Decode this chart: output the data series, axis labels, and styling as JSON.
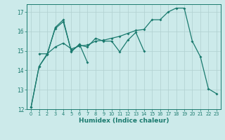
{
  "xlabel": "Humidex (Indice chaleur)",
  "background_color": "#cceaea",
  "line_color": "#1a7a6e",
  "grid_color": "#b0d0d0",
  "ylim": [
    12,
    17.4
  ],
  "xlim": [
    -0.5,
    23.5
  ],
  "yticks": [
    12,
    13,
    14,
    15,
    16,
    17
  ],
  "xticks": [
    0,
    1,
    2,
    3,
    4,
    5,
    6,
    7,
    8,
    9,
    10,
    11,
    12,
    13,
    14,
    15,
    16,
    17,
    18,
    19,
    20,
    21,
    22,
    23
  ],
  "series": [
    {
      "x": [
        0,
        1,
        2,
        3,
        4,
        5,
        6,
        7
      ],
      "y": [
        12.1,
        14.2,
        14.8,
        16.2,
        16.6,
        14.95,
        15.35,
        14.4
      ]
    },
    {
      "x": [
        1,
        2,
        3,
        4,
        5,
        6,
        7,
        8,
        9,
        10,
        11,
        12,
        13,
        14
      ],
      "y": [
        14.85,
        14.85,
        16.15,
        16.5,
        15.0,
        15.3,
        15.2,
        15.65,
        15.5,
        15.5,
        14.95,
        15.55,
        15.95,
        15.0
      ]
    },
    {
      "x": [
        0,
        1,
        2,
        3,
        4,
        5,
        6,
        7,
        8,
        9,
        10,
        11,
        12,
        13,
        14,
        15,
        16,
        17,
        18,
        19,
        20,
        21,
        22,
        23
      ],
      "y": [
        12.1,
        14.2,
        14.85,
        15.2,
        15.4,
        15.1,
        15.25,
        15.3,
        15.5,
        15.55,
        15.65,
        15.75,
        15.9,
        16.05,
        16.1,
        16.6,
        16.6,
        17.0,
        17.2,
        17.2,
        15.5,
        14.7,
        13.05,
        12.8
      ]
    }
  ]
}
